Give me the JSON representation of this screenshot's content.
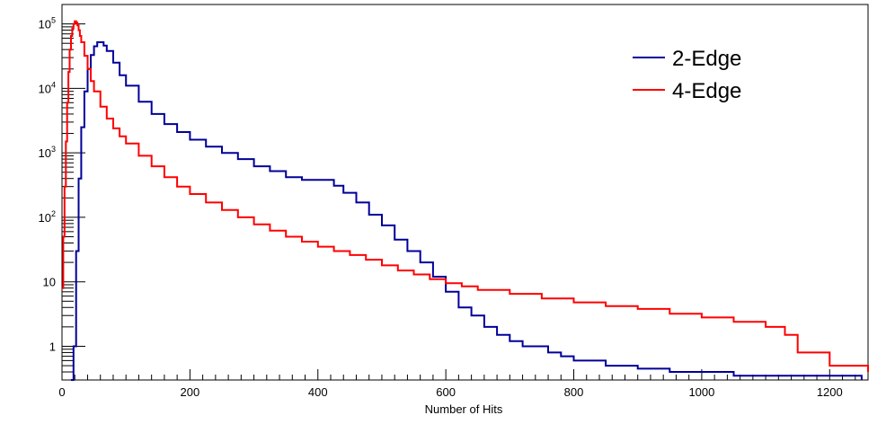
{
  "chart_data": {
    "type": "line",
    "title": "",
    "xlabel": "Number of Hits",
    "ylabel": "",
    "xlim": [
      0,
      1260
    ],
    "ylim": [
      0.3,
      200000
    ],
    "y_scale": "log",
    "grid": false,
    "legend_position": "top-right",
    "x_ticks": [
      "0",
      "200",
      "400",
      "600",
      "800",
      "1000",
      "1200"
    ],
    "y_ticks": [
      {
        "value": 1,
        "base": "1",
        "exp": ""
      },
      {
        "value": 10,
        "base": "10",
        "exp": ""
      },
      {
        "value": 100,
        "base": "10",
        "exp": "2"
      },
      {
        "value": 1000,
        "base": "10",
        "exp": "3"
      },
      {
        "value": 10000,
        "base": "10",
        "exp": "4"
      },
      {
        "value": 100000,
        "base": "10",
        "exp": "5"
      }
    ],
    "series": [
      {
        "name": "2-Edge",
        "color": "#000099",
        "x": [
          14,
          18,
          22,
          26,
          30,
          35,
          40,
          45,
          50,
          55,
          60,
          65,
          70,
          80,
          90,
          100,
          120,
          140,
          160,
          180,
          200,
          225,
          250,
          275,
          300,
          325,
          350,
          375,
          400,
          425,
          440,
          460,
          480,
          500,
          520,
          540,
          560,
          580,
          600,
          620,
          640,
          660,
          680,
          700,
          720,
          740,
          760,
          780,
          800,
          850,
          900,
          950,
          1000,
          1050,
          1100,
          1150,
          1200,
          1250
        ],
        "values": [
          0.3,
          1,
          30,
          400,
          2500,
          9000,
          20000,
          33000,
          45000,
          52000,
          52000,
          46000,
          38000,
          25000,
          16000,
          11000,
          6200,
          4000,
          2800,
          2100,
          1600,
          1250,
          1000,
          800,
          620,
          520,
          420,
          380,
          380,
          310,
          240,
          170,
          110,
          75,
          45,
          30,
          20,
          12,
          7,
          4,
          3,
          2,
          1.5,
          1.2,
          1,
          1,
          0.8,
          0.7,
          0.6,
          0.5,
          0.45,
          0.4,
          0.4,
          0.35,
          0.35,
          0.35,
          0.35,
          0.3
        ]
      },
      {
        "name": "4-Edge",
        "color": "#ff0000",
        "x": [
          0,
          2,
          4,
          6,
          8,
          10,
          12,
          14,
          16,
          18,
          20,
          22,
          24,
          26,
          28,
          30,
          35,
          40,
          45,
          50,
          60,
          70,
          80,
          90,
          100,
          120,
          140,
          160,
          180,
          200,
          225,
          250,
          275,
          300,
          325,
          350,
          375,
          400,
          425,
          450,
          475,
          500,
          525,
          550,
          575,
          600,
          625,
          650,
          700,
          750,
          800,
          850,
          900,
          950,
          1000,
          1050,
          1100,
          1130,
          1150,
          1200,
          1260
        ],
        "values": [
          8,
          50,
          300,
          1500,
          6000,
          18000,
          40000,
          65000,
          85000,
          100000,
          110000,
          105000,
          95000,
          80000,
          65000,
          52000,
          32000,
          20000,
          13000,
          9000,
          5200,
          3400,
          2400,
          1800,
          1400,
          900,
          620,
          420,
          300,
          230,
          170,
          130,
          100,
          78,
          62,
          50,
          42,
          35,
          30,
          26,
          22,
          18,
          15,
          13,
          11,
          9.5,
          8.5,
          7.5,
          6.5,
          5.5,
          4.8,
          4.2,
          3.8,
          3.2,
          2.8,
          2.4,
          2,
          1.5,
          0.8,
          0.5,
          0.4
        ]
      }
    ]
  }
}
